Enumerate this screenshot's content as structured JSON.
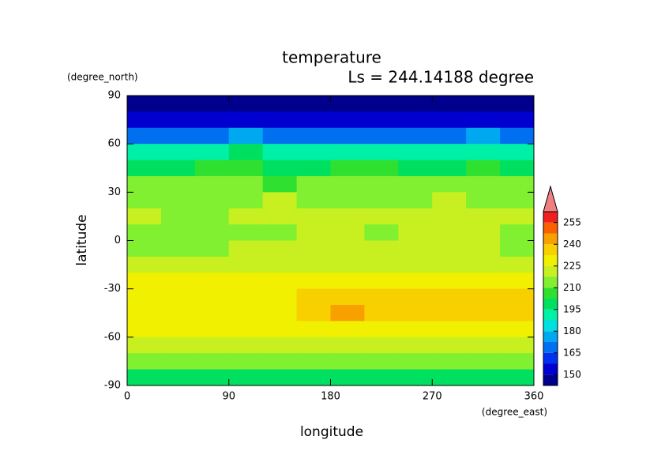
{
  "chart_data": {
    "type": "contour",
    "title": "temperature",
    "subtitle": "Ls = 244.14188 degree",
    "x_label": "longitude",
    "y_label": "latitude",
    "x_units": "(degree_east)",
    "y_units": "(degree_north)",
    "xlim": [
      0,
      360
    ],
    "ylim": [
      -90,
      90
    ],
    "xticks": [
      0,
      90,
      180,
      270,
      360
    ],
    "yticks": [
      -90,
      -60,
      -30,
      0,
      30,
      60,
      90
    ],
    "lon": [
      15,
      45,
      75,
      105,
      135,
      165,
      195,
      225,
      255,
      285,
      315,
      345
    ],
    "lat": [
      85,
      75,
      65,
      55,
      45,
      35,
      25,
      15,
      5,
      -5,
      -15,
      -25,
      -35,
      -45,
      -55,
      -65,
      -75,
      -85
    ],
    "values": [
      [
        145,
        145,
        145,
        145,
        145,
        145,
        145,
        145,
        145,
        145,
        145,
        145
      ],
      [
        152,
        150,
        151,
        152,
        150,
        150,
        152,
        151,
        150,
        151,
        152,
        150
      ],
      [
        172,
        168,
        170,
        174,
        168,
        170,
        172,
        170,
        168,
        172,
        175,
        170
      ],
      [
        190,
        188,
        192,
        195,
        190,
        192,
        194,
        190,
        188,
        190,
        194,
        190
      ],
      [
        202,
        200,
        203,
        205,
        200,
        202,
        205,
        203,
        200,
        202,
        205,
        202
      ],
      [
        210,
        212,
        214,
        210,
        209,
        212,
        214,
        212,
        210,
        212,
        210,
        210
      ],
      [
        216,
        214,
        213,
        216,
        218,
        216,
        215,
        214,
        216,
        218,
        216,
        216
      ],
      [
        219,
        213,
        212,
        218,
        219,
        218,
        219,
        218,
        219,
        219,
        219,
        219
      ],
      [
        216,
        212,
        212,
        214,
        216,
        218,
        219,
        216,
        219,
        219,
        219,
        214
      ],
      [
        214,
        215,
        216,
        219,
        219,
        219,
        219,
        219,
        219,
        219,
        219,
        214
      ],
      [
        222,
        222,
        222,
        222,
        222,
        223,
        224,
        223,
        224,
        224,
        222,
        222
      ],
      [
        228,
        226,
        226,
        226,
        226,
        228,
        230,
        232,
        232,
        230,
        228,
        226
      ],
      [
        232,
        228,
        228,
        226,
        228,
        234,
        236,
        236,
        236,
        234,
        234,
        234
      ],
      [
        228,
        228,
        228,
        226,
        226,
        234,
        241,
        236,
        236,
        234,
        234,
        234
      ],
      [
        226,
        226,
        226,
        226,
        226,
        228,
        230,
        230,
        228,
        228,
        228,
        226
      ],
      [
        222,
        222,
        222,
        222,
        222,
        222,
        222,
        222,
        222,
        222,
        222,
        222
      ],
      [
        210,
        212,
        212,
        212,
        212,
        212,
        212,
        212,
        212,
        212,
        212,
        210
      ],
      [
        200,
        200,
        200,
        200,
        200,
        200,
        200,
        200,
        200,
        200,
        200,
        200
      ]
    ],
    "colorbar": {
      "lim": [
        142.5,
        262.5
      ],
      "ticks": [
        150,
        165,
        180,
        195,
        210,
        225,
        240,
        255
      ],
      "levels": [
        142.5,
        150,
        157.5,
        165,
        172.5,
        180,
        187.5,
        195,
        202.5,
        210,
        217.5,
        225,
        232.5,
        240,
        247.5,
        255
      ],
      "colors": [
        "#00008c",
        "#0000d0",
        "#0030f0",
        "#0070f0",
        "#00a8f0",
        "#00e0e0",
        "#00f0a8",
        "#00e060",
        "#30e030",
        "#80f030",
        "#c8f020",
        "#f0f000",
        "#f8d000",
        "#f8a000",
        "#f86000",
        "#f02020"
      ],
      "extend_color": "#f08080"
    }
  }
}
